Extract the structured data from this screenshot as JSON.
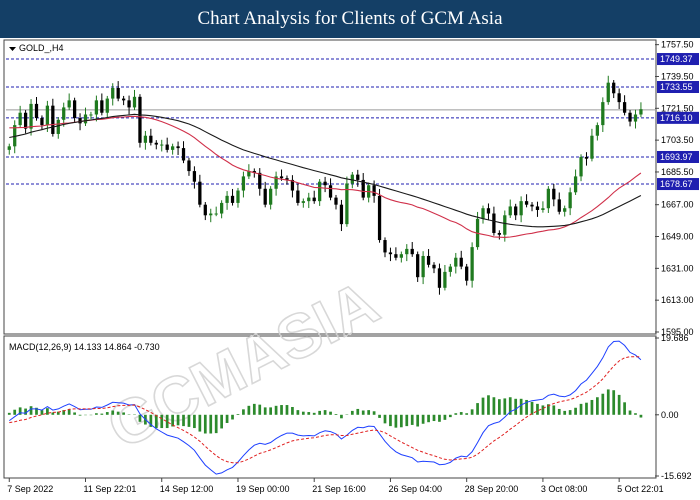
{
  "header": {
    "title": "Chart Analysis for Clients of GCM Asia"
  },
  "colors": {
    "header_bg": "#143f66",
    "bull_candle": "#1f7a1f",
    "bear_candle": "#000000",
    "ma_fast": "#d0304a",
    "ma_slow": "#1a1a1a",
    "level_line": "#1f1fb0",
    "label_box": "#1f1fb0",
    "macd_line": "#1e40ff",
    "signal_line": "#e02020",
    "histogram": "#2c8a2c"
  },
  "watermark": "GCMASIA",
  "chart_data": [
    {
      "type": "candlestick",
      "symbol_label": "GOLD_,H4",
      "y_ticks": [
        "1757.50",
        "1739.50",
        "1721.50",
        "1703.50",
        "1685.50",
        "1667.00",
        "1649.00",
        "1631.00",
        "1613.00",
        "1595.00"
      ],
      "ylim": [
        1595,
        1759
      ],
      "levels": [
        {
          "label": "1749.37",
          "value": 1749.37
        },
        {
          "label": "1733.55",
          "value": 1733.55
        },
        {
          "label": "1716.10",
          "value": 1716.1
        },
        {
          "label": "1693.97",
          "value": 1693.97
        },
        {
          "label": "1678.67",
          "value": 1678.67
        }
      ],
      "current_price": 1720.6,
      "x_ticks": [
        {
          "label": "7 Sep 2022",
          "index": 0
        },
        {
          "label": "11 Sep 22:01",
          "index": 14
        },
        {
          "label": "14 Sep 12:00",
          "index": 28
        },
        {
          "label": "19 Sep 00:00",
          "index": 42
        },
        {
          "label": "21 Sep 16:00",
          "index": 56
        },
        {
          "label": "26 Sep 04:00",
          "index": 70
        },
        {
          "label": "28 Sep 20:00",
          "index": 84
        },
        {
          "label": "3 Oct 08:00",
          "index": 98
        },
        {
          "label": "5 Oct 22:01",
          "index": 112
        }
      ],
      "closes": [
        1700,
        1712,
        1719,
        1710,
        1724,
        1716,
        1712,
        1723,
        1707,
        1715,
        1722,
        1726,
        1716,
        1713,
        1718,
        1718,
        1726,
        1719,
        1727,
        1733,
        1727,
        1726,
        1722,
        1728,
        1702,
        1706,
        1702,
        1701,
        1701,
        1698,
        1700,
        1699,
        1692,
        1686,
        1680,
        1667,
        1661,
        1662,
        1662,
        1668,
        1672,
        1668,
        1675,
        1683,
        1686,
        1685,
        1676,
        1667,
        1676,
        1683,
        1682,
        1681,
        1675,
        1668,
        1669,
        1671,
        1669,
        1680,
        1678,
        1671,
        1667,
        1656,
        1679,
        1684,
        1681,
        1671,
        1678,
        1672,
        1647,
        1640,
        1639,
        1637,
        1639,
        1642,
        1639,
        1626,
        1638,
        1633,
        1631,
        1620,
        1629,
        1632,
        1637,
        1632,
        1624,
        1643,
        1659,
        1665,
        1662,
        1651,
        1650,
        1661,
        1666,
        1661,
        1669,
        1667,
        1666,
        1664,
        1665,
        1676,
        1670,
        1663,
        1665,
        1674,
        1683,
        1694,
        1693,
        1706,
        1712,
        1725,
        1736,
        1730,
        1725,
        1719,
        1714,
        1718,
        1721
      ],
      "moving_averages": [
        {
          "values": [
            1710.5,
            1710.5,
            1710.6,
            1710.7,
            1711.1,
            1711.3,
            1711.5,
            1712.1,
            1712.3,
            1712.6,
            1713.0,
            1713.2,
            1713.6,
            1714.0,
            1714.5,
            1714.8,
            1715.2,
            1715.3,
            1715.7,
            1716.2,
            1716.5,
            1716.6,
            1716.8,
            1717.0,
            1716.7,
            1716.4,
            1715.8,
            1715.0,
            1714.0,
            1712.8,
            1711.5,
            1710.1,
            1708.6,
            1706.9,
            1704.9,
            1702.4,
            1700.0,
            1697.8,
            1695.4,
            1693.3,
            1691.4,
            1689.4,
            1687.9,
            1686.7,
            1685.9,
            1685.1,
            1684.3,
            1683.5,
            1682.6,
            1681.9,
            1681.4,
            1680.9,
            1680.4,
            1679.4,
            1678.5,
            1677.6,
            1676.8,
            1676.6,
            1676.3,
            1676.1,
            1676.0,
            1675.5,
            1675.6,
            1675.5,
            1675.1,
            1674.5,
            1674.4,
            1674.0,
            1672.6,
            1671.0,
            1669.8,
            1668.9,
            1668.2,
            1667.6,
            1666.9,
            1665.6,
            1664.8,
            1663.5,
            1662.2,
            1660.8,
            1659.4,
            1657.9,
            1656.9,
            1655.4,
            1653.3,
            1651.7,
            1650.8,
            1650.2,
            1649.6,
            1648.8,
            1648.6,
            1648.5,
            1648.7,
            1649.2,
            1649.8,
            1650.4,
            1650.8,
            1651.5,
            1652.0,
            1652.6,
            1652.9,
            1653.5,
            1654.5,
            1655.8,
            1657.6,
            1659.7,
            1661.6,
            1663.6,
            1665.9,
            1668.4,
            1671.0,
            1673.9,
            1676.3,
            1678.3,
            1680.3,
            1682.7,
            1684.9
          ]
        },
        {
          "values": [
            1705.0,
            1705.6,
            1706.3,
            1707.0,
            1708.0,
            1708.7,
            1709.4,
            1710.3,
            1710.9,
            1711.6,
            1712.4,
            1713.0,
            1713.5,
            1714.0,
            1714.5,
            1714.9,
            1715.4,
            1715.8,
            1716.3,
            1716.8,
            1717.2,
            1717.5,
            1717.8,
            1718.1,
            1717.8,
            1717.6,
            1717.3,
            1716.9,
            1716.4,
            1715.8,
            1715.2,
            1714.5,
            1713.6,
            1712.6,
            1711.4,
            1709.9,
            1708.3,
            1706.7,
            1705.1,
            1703.5,
            1702.1,
            1700.6,
            1699.3,
            1698.0,
            1697.0,
            1696.0,
            1695.1,
            1694.1,
            1693.2,
            1692.3,
            1691.4,
            1690.6,
            1689.7,
            1688.8,
            1687.9,
            1687.1,
            1686.3,
            1685.5,
            1684.7,
            1683.9,
            1683.1,
            1682.2,
            1681.6,
            1681.0,
            1680.4,
            1679.7,
            1679.1,
            1678.4,
            1677.5,
            1676.6,
            1675.7,
            1674.8,
            1673.9,
            1673.0,
            1672.1,
            1671.1,
            1670.1,
            1669.1,
            1668.0,
            1667.0,
            1665.9,
            1664.9,
            1663.8,
            1662.8,
            1661.6,
            1660.7,
            1659.9,
            1659.1,
            1658.4,
            1657.7,
            1657.0,
            1656.4,
            1655.9,
            1655.5,
            1655.2,
            1654.9,
            1654.6,
            1654.5,
            1654.5,
            1654.6,
            1654.8,
            1655.0,
            1655.3,
            1655.8,
            1656.5,
            1657.3,
            1658.1,
            1659.0,
            1660.1,
            1661.4,
            1662.9,
            1664.5,
            1666.0,
            1667.5,
            1669.0,
            1670.6,
            1672.2
          ]
        }
      ]
    },
    {
      "type": "macd",
      "label": "MACD(12,26,9) 14.133 14.864 -0.730",
      "y_ticks": [
        "19.686",
        "0.00",
        "-15.692"
      ],
      "ylim": [
        -15.692,
        19.686
      ],
      "macd": [
        -1.5,
        -0.5,
        0.5,
        0.4,
        1.5,
        1.5,
        1.2,
        2.1,
        1.2,
        1.5,
        2.2,
        2.8,
        2.1,
        1.3,
        1.4,
        1.4,
        2.0,
        1.9,
        2.5,
        3.2,
        3.1,
        3.0,
        2.5,
        2.6,
        0.2,
        -1.2,
        -2.5,
        -3.6,
        -4.4,
        -5.2,
        -5.6,
        -6.0,
        -6.9,
        -7.9,
        -9.1,
        -11.1,
        -12.9,
        -14.1,
        -15.2,
        -14.9,
        -14.1,
        -13.5,
        -12.1,
        -10.5,
        -9.0,
        -7.8,
        -7.3,
        -7.6,
        -7.1,
        -6.1,
        -5.3,
        -4.7,
        -4.7,
        -5.2,
        -5.4,
        -5.3,
        -5.4,
        -4.6,
        -4.1,
        -4.3,
        -4.9,
        -6.2,
        -5.2,
        -4.0,
        -3.2,
        -3.3,
        -2.9,
        -3.0,
        -4.9,
        -6.8,
        -8.3,
        -9.5,
        -10.2,
        -10.6,
        -11.0,
        -12.1,
        -11.9,
        -12.0,
        -12.1,
        -12.8,
        -12.7,
        -12.2,
        -11.1,
        -10.6,
        -10.8,
        -9.5,
        -7.1,
        -4.6,
        -2.8,
        -2.2,
        -1.8,
        -0.6,
        0.8,
        1.4,
        2.5,
        3.2,
        3.6,
        3.8,
        4.0,
        5.0,
        5.3,
        4.8,
        4.6,
        5.1,
        6.2,
        7.9,
        8.9,
        10.6,
        12.4,
        14.6,
        17.4,
        18.8,
        18.9,
        17.8,
        16.0,
        15.3,
        14.1
      ],
      "signal": [
        -2.0,
        -1.8,
        -1.4,
        -1.2,
        -0.7,
        -0.3,
        -0.0,
        0.4,
        0.6,
        0.7,
        1.0,
        1.4,
        1.5,
        1.5,
        1.5,
        1.5,
        1.6,
        1.6,
        1.8,
        2.1,
        2.3,
        2.4,
        2.4,
        2.5,
        2.0,
        1.3,
        0.6,
        -0.2,
        -1.0,
        -1.8,
        -2.6,
        -3.3,
        -4.0,
        -4.8,
        -5.7,
        -6.8,
        -8.1,
        -9.3,
        -10.5,
        -11.4,
        -12.0,
        -12.3,
        -12.3,
        -11.9,
        -11.3,
        -10.6,
        -9.9,
        -9.5,
        -9.0,
        -8.4,
        -7.8,
        -7.2,
        -6.7,
        -6.4,
        -6.2,
        -6.0,
        -5.9,
        -5.6,
        -5.3,
        -5.1,
        -5.1,
        -5.3,
        -5.3,
        -5.0,
        -4.7,
        -4.4,
        -4.1,
        -3.9,
        -4.1,
        -4.6,
        -5.4,
        -6.2,
        -7.0,
        -7.7,
        -8.4,
        -9.1,
        -9.6,
        -10.1,
        -10.5,
        -11.0,
        -11.4,
        -11.6,
        -11.5,
        -11.3,
        -11.2,
        -10.9,
        -10.1,
        -9.0,
        -7.8,
        -6.7,
        -5.8,
        -4.8,
        -3.7,
        -2.7,
        -1.6,
        -0.6,
        0.3,
        1.0,
        1.6,
        2.3,
        2.9,
        3.3,
        3.6,
        3.9,
        4.4,
        5.1,
        5.8,
        6.8,
        7.9,
        9.2,
        10.9,
        12.5,
        13.8,
        14.6,
        14.9,
        14.9,
        14.9
      ],
      "histogram": [
        0.5,
        1.3,
        1.9,
        1.6,
        2.2,
        1.8,
        1.2,
        1.7,
        0.6,
        0.8,
        1.2,
        1.4,
        0.6,
        -0.2,
        -0.1,
        -0.1,
        0.4,
        0.3,
        0.7,
        1.1,
        0.8,
        0.6,
        0.1,
        0.1,
        -1.8,
        -2.5,
        -3.1,
        -3.4,
        -3.4,
        -3.4,
        -3.0,
        -2.7,
        -2.9,
        -3.1,
        -3.4,
        -4.3,
        -4.8,
        -4.8,
        -4.7,
        -3.5,
        -2.1,
        -1.2,
        0.2,
        1.4,
        2.3,
        2.8,
        2.6,
        1.9,
        1.9,
        2.3,
        2.5,
        2.5,
        2.0,
        1.2,
        0.8,
        0.7,
        0.5,
        1.0,
        1.2,
        0.8,
        0.2,
        -0.9,
        0.1,
        1.0,
        1.5,
        1.1,
        1.2,
        0.9,
        -0.8,
        -2.2,
        -2.9,
        -3.3,
        -3.2,
        -2.9,
        -2.6,
        -3.0,
        -2.3,
        -1.9,
        -1.6,
        -1.8,
        -1.3,
        -0.6,
        0.4,
        0.7,
        0.4,
        1.4,
        3.0,
        4.4,
        5.0,
        4.5,
        4.0,
        4.2,
        4.5,
        4.1,
        4.1,
        3.8,
        3.3,
        2.8,
        2.4,
        2.7,
        2.4,
        1.5,
        1.0,
        1.2,
        1.8,
        2.8,
        3.1,
        3.8,
        4.5,
        5.4,
        6.5,
        6.3,
        5.1,
        3.2,
        1.1,
        0.4,
        -0.7
      ]
    }
  ]
}
